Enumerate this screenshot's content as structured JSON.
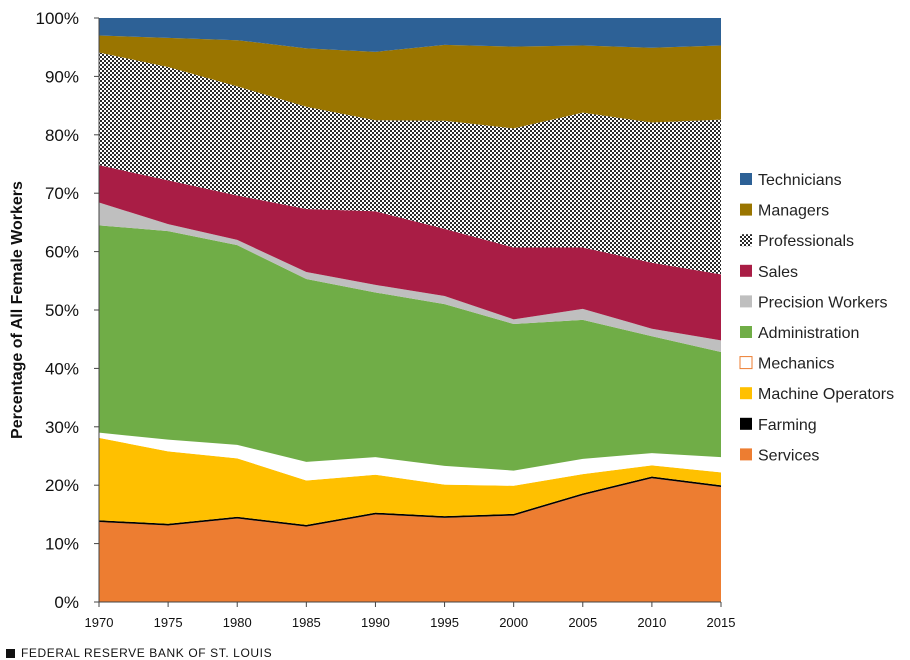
{
  "chart_data": {
    "type": "area",
    "stacked": true,
    "title": "",
    "xlabel": "",
    "ylabel": "Percentage of All Female Workers",
    "x": [
      1970,
      1975,
      1980,
      1985,
      1990,
      1995,
      2000,
      2005,
      2010,
      2015
    ],
    "x_tick_labels": [
      "1970",
      "1975",
      "1980",
      "1985",
      "1990",
      "1995",
      "2000",
      "2005",
      "2010",
      "2015"
    ],
    "ylim": [
      0,
      100
    ],
    "y_ticks": [
      0,
      10,
      20,
      30,
      40,
      50,
      60,
      70,
      80,
      90,
      100
    ],
    "y_tick_labels": [
      "0%",
      "10%",
      "20%",
      "30%",
      "40%",
      "50%",
      "60%",
      "70%",
      "80%",
      "90%",
      "100%"
    ],
    "legend_position": "right",
    "series": [
      {
        "name": "Services",
        "color": "#ED7D31",
        "values": [
          13.7,
          13.1,
          14.3,
          12.9,
          15.0,
          14.4,
          14.8,
          18.3,
          21.2,
          19.7
        ]
      },
      {
        "name": "Farming",
        "color": "#000000",
        "values": [
          0.3,
          0.3,
          0.3,
          0.3,
          0.3,
          0.3,
          0.3,
          0.3,
          0.3,
          0.3
        ]
      },
      {
        "name": "Machine Operators",
        "color": "#FFC000",
        "values": [
          14.1,
          12.4,
          10.0,
          7.6,
          6.5,
          5.4,
          4.8,
          3.3,
          1.9,
          2.2
        ]
      },
      {
        "name": "Mechanics",
        "color": "#FFFFFF",
        "values": [
          0.9,
          2.0,
          2.3,
          3.2,
          3.0,
          3.2,
          2.6,
          2.6,
          2.1,
          2.6
        ]
      },
      {
        "name": "Administration",
        "color": "#70AD47",
        "values": [
          35.5,
          35.7,
          34.2,
          31.3,
          28.2,
          27.7,
          25.1,
          23.8,
          20.0,
          18.0
        ]
      },
      {
        "name": "Precision Workers",
        "color": "#BFBFBF",
        "values": [
          3.9,
          1.2,
          0.9,
          1.2,
          1.3,
          1.4,
          0.8,
          1.9,
          1.3,
          2.0
        ]
      },
      {
        "name": "Sales",
        "color": "#A91D45",
        "values": [
          6.4,
          7.5,
          7.6,
          10.8,
          12.6,
          11.5,
          12.3,
          10.5,
          11.3,
          11.3
        ]
      },
      {
        "name": "Professionals",
        "color": "#555555",
        "values": [
          19.3,
          19.4,
          18.7,
          17.5,
          15.6,
          18.5,
          20.4,
          23.1,
          24.0,
          26.5
        ]
      },
      {
        "name": "Managers",
        "color": "#9A7500",
        "values": [
          2.9,
          5.0,
          7.9,
          10.0,
          11.7,
          13.0,
          14.0,
          11.5,
          12.8,
          12.7
        ]
      },
      {
        "name": "Technicians",
        "color": "#2D6196",
        "values": [
          3.0,
          3.4,
          3.8,
          5.2,
          5.8,
          4.6,
          4.9,
          4.7,
          5.1,
          4.7
        ]
      }
    ]
  },
  "footer": {
    "text": "FEDERAL RESERVE BANK OF ST. LOUIS"
  }
}
